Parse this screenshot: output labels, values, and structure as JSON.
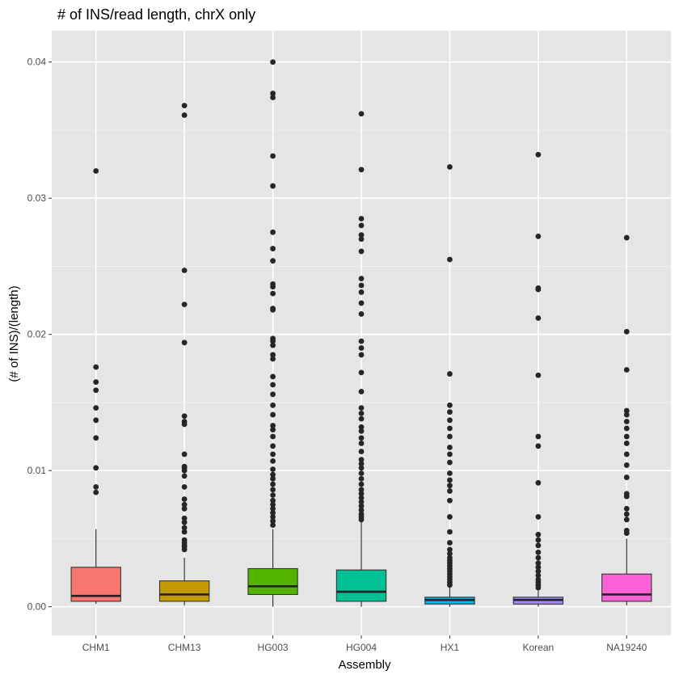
{
  "chart_data": {
    "type": "boxplot",
    "title": "# of INS/read length, chrX only",
    "xlabel": "Assembly",
    "ylabel": "(# of INS)/(length)",
    "ylim": [
      -0.0021,
      0.0423
    ],
    "yticks": [
      0.0,
      0.01,
      0.02,
      0.03,
      0.04
    ],
    "ytick_labels": [
      "0.00",
      "0.01",
      "0.02",
      "0.03",
      "0.04"
    ],
    "grid": true,
    "panel_background": "#e5e5e5",
    "categories": [
      "CHM1",
      "CHM13",
      "HG003",
      "HG004",
      "HX1",
      "Korean",
      "NA19240"
    ],
    "boxes": [
      {
        "name": "CHM1",
        "color": "#f8766d",
        "whisker_low": 0.0002,
        "q1": 0.0004,
        "median": 0.0008,
        "q3": 0.0029,
        "whisker_high": 0.0057,
        "outliers": [
          0.0084,
          0.0088,
          0.0102,
          0.0124,
          0.0137,
          0.0146,
          0.0159,
          0.0165,
          0.0176,
          0.032
        ]
      },
      {
        "name": "CHM13",
        "color": "#c49a00",
        "whisker_low": 0.0001,
        "q1": 0.0004,
        "median": 0.0009,
        "q3": 0.0019,
        "whisker_high": 0.0036,
        "outliers": [
          0.0042,
          0.0044,
          0.0045,
          0.0047,
          0.0049,
          0.0055,
          0.0058,
          0.0062,
          0.0065,
          0.0072,
          0.0075,
          0.0079,
          0.0088,
          0.0096,
          0.01,
          0.0102,
          0.0103,
          0.0112,
          0.0134,
          0.0136,
          0.014,
          0.0194,
          0.0222,
          0.0247,
          0.0361,
          0.0368
        ]
      },
      {
        "name": "HG003",
        "color": "#53b400",
        "whisker_low": 0.0,
        "q1": 0.0009,
        "median": 0.0015,
        "q3": 0.0028,
        "whisker_high": 0.0057,
        "outliers": [
          0.006,
          0.0063,
          0.0066,
          0.0069,
          0.0072,
          0.0075,
          0.0078,
          0.0082,
          0.0086,
          0.009,
          0.0094,
          0.0097,
          0.0101,
          0.0107,
          0.0112,
          0.0118,
          0.0125,
          0.013,
          0.0133,
          0.0141,
          0.0148,
          0.0156,
          0.0163,
          0.0169,
          0.0182,
          0.0185,
          0.0192,
          0.0195,
          0.0197,
          0.0218,
          0.0219,
          0.023,
          0.0235,
          0.0237,
          0.0254,
          0.0263,
          0.0275,
          0.0309,
          0.0331,
          0.0374,
          0.0377,
          0.04
        ]
      },
      {
        "name": "HG004",
        "color": "#00c094",
        "whisker_low": 0.0,
        "q1": 0.0004,
        "median": 0.0011,
        "q3": 0.0027,
        "whisker_high": 0.0063,
        "outliers": [
          0.0064,
          0.0066,
          0.0068,
          0.0071,
          0.0074,
          0.0077,
          0.008,
          0.0083,
          0.0086,
          0.009,
          0.0094,
          0.0098,
          0.0102,
          0.0105,
          0.0108,
          0.0114,
          0.012,
          0.0124,
          0.0129,
          0.0132,
          0.0138,
          0.0142,
          0.0146,
          0.0158,
          0.0172,
          0.0185,
          0.019,
          0.0195,
          0.0215,
          0.0223,
          0.0231,
          0.0236,
          0.0241,
          0.0261,
          0.027,
          0.0273,
          0.028,
          0.0285,
          0.0321,
          0.0362
        ]
      },
      {
        "name": "HX1",
        "color": "#00b6eb",
        "whisker_low": 0.0,
        "q1": 0.0002,
        "median": 0.0005,
        "q3": 0.0007,
        "whisker_high": 0.0015,
        "outliers": [
          0.0016,
          0.0018,
          0.002,
          0.0022,
          0.0024,
          0.0026,
          0.0028,
          0.003,
          0.0032,
          0.0034,
          0.0036,
          0.0039,
          0.0042,
          0.0047,
          0.0055,
          0.0066,
          0.0078,
          0.0085,
          0.0089,
          0.0093,
          0.0098,
          0.0106,
          0.0112,
          0.0117,
          0.0125,
          0.0131,
          0.0137,
          0.0143,
          0.0148,
          0.0171,
          0.0255,
          0.0323
        ]
      },
      {
        "name": "Korean",
        "color": "#a58aff",
        "whisker_low": 0.0,
        "q1": 0.0002,
        "median": 0.0005,
        "q3": 0.0007,
        "whisker_high": 0.0012,
        "outliers": [
          0.0014,
          0.0016,
          0.0018,
          0.002,
          0.0023,
          0.0026,
          0.0029,
          0.0032,
          0.0036,
          0.004,
          0.0045,
          0.0049,
          0.0053,
          0.0066,
          0.0091,
          0.0118,
          0.0125,
          0.017,
          0.0212,
          0.0233,
          0.0234,
          0.0272,
          0.0332
        ]
      },
      {
        "name": "NA19240",
        "color": "#fb61d7",
        "whisker_low": 0.0001,
        "q1": 0.0004,
        "median": 0.0009,
        "q3": 0.0024,
        "whisker_high": 0.005,
        "outliers": [
          0.0054,
          0.0056,
          0.0064,
          0.0068,
          0.0072,
          0.0081,
          0.0083,
          0.0095,
          0.0104,
          0.0112,
          0.012,
          0.0125,
          0.0131,
          0.0136,
          0.0141,
          0.0144,
          0.0174,
          0.0202,
          0.0271
        ]
      }
    ]
  }
}
